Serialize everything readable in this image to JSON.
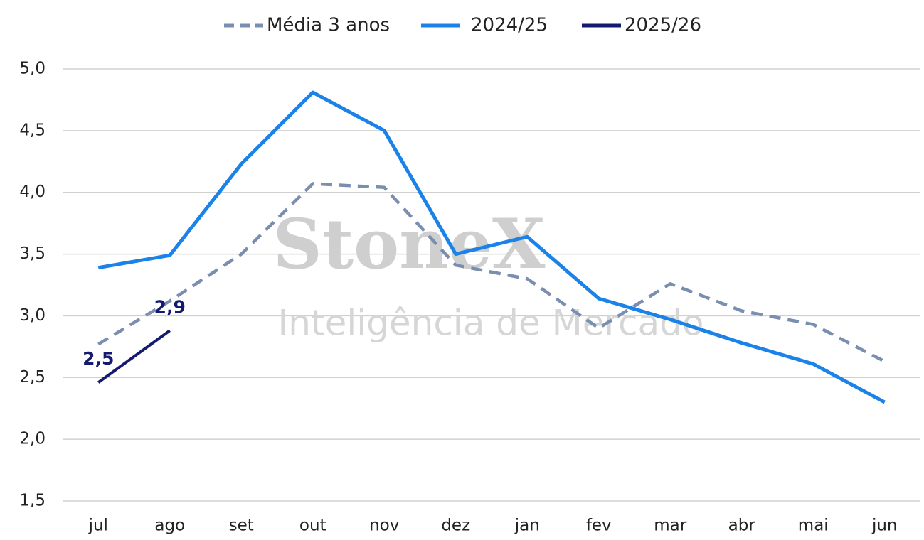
{
  "chart_data": {
    "type": "line",
    "watermark": [
      "StoneX",
      "Inteligência de Mercado"
    ],
    "categories": [
      "jul",
      "ago",
      "set",
      "out",
      "nov",
      "dez",
      "jan",
      "fev",
      "mar",
      "abr",
      "mai",
      "jun"
    ],
    "series": [
      {
        "name": "Média 3 anos",
        "color": "#7a8fb0",
        "dashed": true,
        "values": [
          2.77,
          3.12,
          3.5,
          4.07,
          4.04,
          3.41,
          3.3,
          2.9,
          3.26,
          3.04,
          2.93,
          2.63
        ]
      },
      {
        "name": "2024/25",
        "color": "#1a82e8",
        "values": [
          3.39,
          3.49,
          4.23,
          4.81,
          4.5,
          3.5,
          3.64,
          3.14,
          2.97,
          2.78,
          2.61,
          2.3
        ]
      },
      {
        "name": "2025/26",
        "color": "#141a6e",
        "values": [
          2.46,
          2.88,
          null,
          null,
          null,
          null,
          null,
          null,
          null,
          null,
          null,
          null
        ],
        "value_labels": [
          "2,5",
          "2,9",
          null,
          null,
          null,
          null,
          null,
          null,
          null,
          null,
          null,
          null
        ]
      }
    ],
    "ylim": [
      1.5,
      5.0
    ],
    "yticks": [
      {
        "value": 1.5,
        "label": "1,5"
      },
      {
        "value": 2.0,
        "label": "2,0"
      },
      {
        "value": 2.5,
        "label": "2,5"
      },
      {
        "value": 3.0,
        "label": "3,0"
      },
      {
        "value": 3.5,
        "label": "3,5"
      },
      {
        "value": 4.0,
        "label": "4,0"
      },
      {
        "value": 4.5,
        "label": "4,5"
      },
      {
        "value": 5.0,
        "label": "5,0"
      }
    ],
    "grid": true,
    "legend": "top"
  }
}
